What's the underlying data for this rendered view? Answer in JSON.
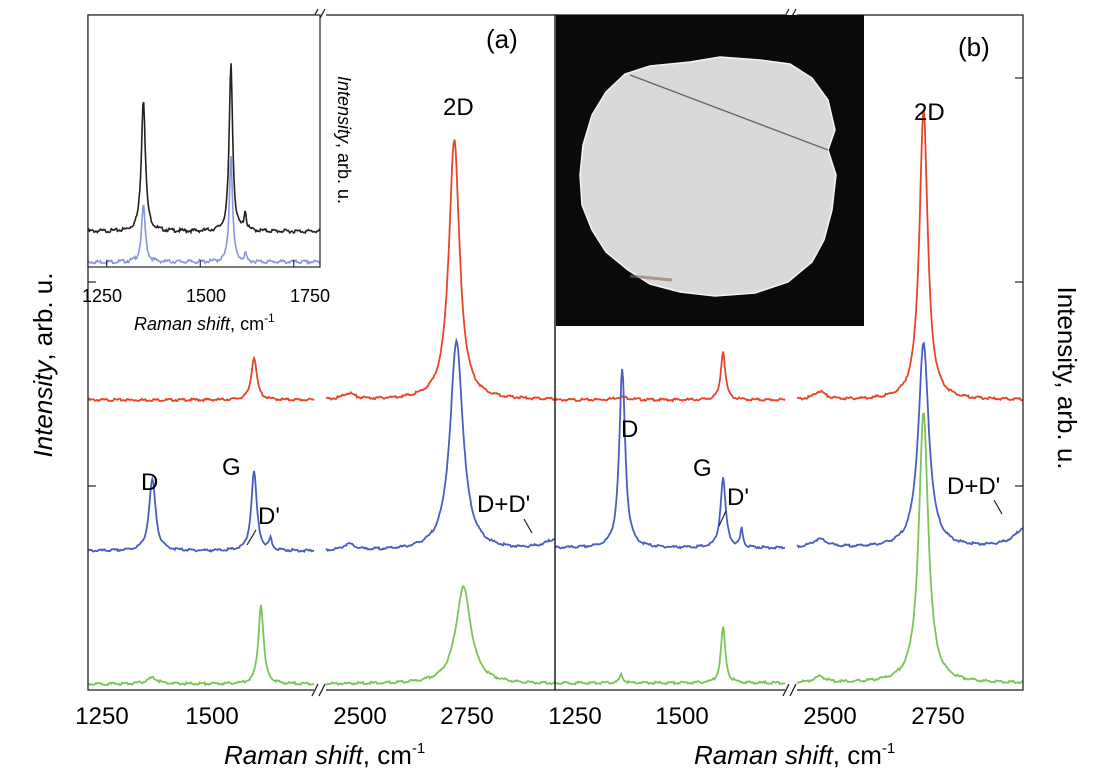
{
  "colors": {
    "red": "#e8442a",
    "blue": "#4a5ec0",
    "green": "#7cc456",
    "black": "#222222",
    "lightblue": "#8a95dd",
    "photo_bg": "#0a0a0a",
    "photo_disk": "#d9d9d9"
  },
  "chart_data": [
    {
      "id": "a",
      "type": "line",
      "panel_label": "(a)",
      "xlabel": "Raman shift",
      "xunit": "cm",
      "yunit_exponent": "-1",
      "ylabel": "Intensity",
      "yunit": ", arb. u.",
      "x_segments": [
        [
          1200,
          1720
        ],
        [
          2400,
          2900
        ]
      ],
      "xticks": [
        1250,
        1500,
        2500,
        2750
      ],
      "xtick_labels": [
        "1250",
        "1500",
        "2500",
        "2750"
      ],
      "series": [
        {
          "name": "red",
          "color": "red",
          "offset": 2.0,
          "peaks": [
            [
              1582,
              15,
              0.42
            ],
            [
              2450,
              30,
              0.06
            ],
            [
              2680,
              28,
              2.55
            ]
          ]
        },
        {
          "name": "blue",
          "color": "blue",
          "offset": 1.0,
          "peaks": [
            [
              1348,
              18,
              0.7
            ],
            [
              1582,
              15,
              0.78
            ],
            [
              1620,
              8,
              0.1
            ],
            [
              2450,
              30,
              0.06
            ],
            [
              2685,
              34,
              2.05
            ],
            [
              2910,
              70,
              0.12
            ]
          ]
        },
        {
          "name": "green",
          "color": "green",
          "offset": 0.0,
          "peaks": [
            [
              1348,
              30,
              0.06
            ],
            [
              1598,
              14,
              0.78
            ],
            [
              2700,
              40,
              0.95
            ]
          ]
        }
      ],
      "annotations": [
        "D",
        "G",
        "D'",
        "2D",
        "D+D'"
      ],
      "inset": {
        "x_range": [
          1200,
          1820
        ],
        "xticks": [
          1250,
          1500,
          1750
        ],
        "xtick_labels": [
          "1250",
          "1500",
          "1750"
        ],
        "xlabel": "Raman shift",
        "xunit": "cm",
        "yunit_exponent": "-1",
        "ylabel": "Intensity",
        "yunit": ", arb. u.",
        "series": [
          {
            "name": "black",
            "color": "black",
            "offset": 0.3,
            "peaks": [
              [
                1348,
                13,
                1.3
              ],
              [
                1582,
                11,
                1.65
              ],
              [
                1620,
                7,
                0.18
              ]
            ]
          },
          {
            "name": "lightblue",
            "color": "lightblue",
            "offset": 0.0,
            "peaks": [
              [
                1348,
                12,
                0.55
              ],
              [
                1582,
                10,
                1.05
              ],
              [
                1620,
                6,
                0.08
              ]
            ]
          }
        ]
      }
    },
    {
      "id": "b",
      "type": "line",
      "panel_label": "(b)",
      "xlabel": "Raman shift",
      "xunit": "cm",
      "yunit_exponent": "-1",
      "ylabel": "Intensity",
      "yunit": ", arb. u.",
      "x_segments": [
        [
          1200,
          1720
        ],
        [
          2400,
          2900
        ]
      ],
      "xticks": [
        1250,
        1500,
        2500,
        2750
      ],
      "xtick_labels": [
        "1250",
        "1500",
        "2500",
        "2750"
      ],
      "series": [
        {
          "name": "red",
          "color": "red",
          "offset": 2.0,
          "peaks": [
            [
              1350,
              40,
              0.03
            ],
            [
              1580,
              12,
              0.48
            ],
            [
              2450,
              30,
              0.08
            ],
            [
              2680,
              22,
              2.85
            ]
          ]
        },
        {
          "name": "blue",
          "color": "blue",
          "offset": 1.0,
          "peaks": [
            [
              1352,
              16,
              1.75
            ],
            [
              1580,
              14,
              0.68
            ],
            [
              1622,
              7,
              0.18
            ],
            [
              2450,
              40,
              0.08
            ],
            [
              2680,
              28,
              2.0
            ],
            [
              2910,
              60,
              0.22
            ]
          ]
        },
        {
          "name": "green",
          "color": "green",
          "offset": 0.0,
          "peaks": [
            [
              1350,
              10,
              0.08
            ],
            [
              1580,
              12,
              0.55
            ],
            [
              2450,
              30,
              0.06
            ],
            [
              2680,
              25,
              2.65
            ]
          ]
        }
      ],
      "annotations": [
        "D",
        "G",
        "D'",
        "2D",
        "D+D'"
      ]
    }
  ]
}
